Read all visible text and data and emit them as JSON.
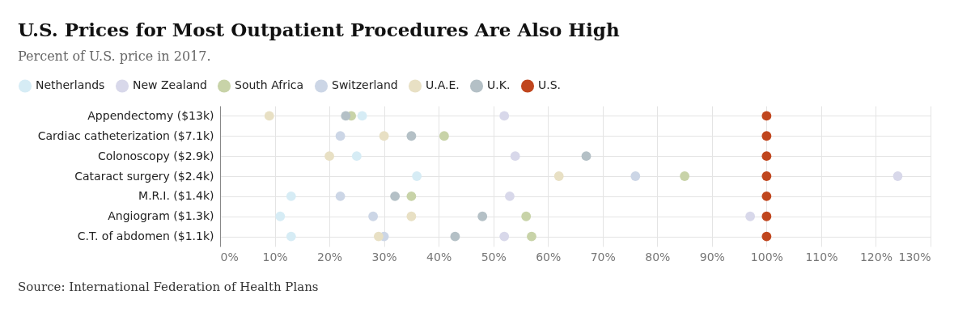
{
  "chart_data": {
    "type": "scatter",
    "orientation": "horizontal",
    "title": "U.S. Prices for Most Outpatient Procedures Are Also High",
    "subtitle": "Percent of U.S. price in 2017.",
    "categories": [
      "Appendectomy ($13k)",
      "Cardiac catheterization ($7.1k)",
      "Colonoscopy ($2.9k)",
      "Cataract surgery ($2.4k)",
      "M.R.I. ($1.4k)",
      "Angiogram ($1.3k)",
      "C.T. of abdomen ($1.1k)"
    ],
    "series": [
      {
        "name": "Netherlands",
        "color": "#d6ecf5",
        "values": [
          26,
          null,
          25,
          36,
          13,
          11,
          13
        ]
      },
      {
        "name": "New Zealand",
        "color": "#d8d8ea",
        "values": [
          52,
          null,
          54,
          124,
          53,
          97,
          52
        ]
      },
      {
        "name": "South Africa",
        "color": "#c8d3a8",
        "values": [
          24,
          41,
          null,
          85,
          35,
          56,
          57
        ]
      },
      {
        "name": "Switzerland",
        "color": "#ccd6e6",
        "values": [
          null,
          22,
          null,
          76,
          22,
          28,
          30
        ]
      },
      {
        "name": "U.A.E.",
        "color": "#e8e0c4",
        "values": [
          9,
          30,
          20,
          62,
          null,
          35,
          29
        ]
      },
      {
        "name": "U.K.",
        "color": "#b4c0c6",
        "values": [
          23,
          35,
          67,
          null,
          32,
          48,
          43
        ]
      },
      {
        "name": "U.S.",
        "color": "#c0461e",
        "values": [
          100,
          100,
          100,
          100,
          100,
          100,
          100
        ]
      }
    ],
    "xlim": [
      0,
      130
    ],
    "xticks": [
      {
        "value": 0,
        "label": "0%"
      },
      {
        "value": 10,
        "label": "10%"
      },
      {
        "value": 20,
        "label": "20%"
      },
      {
        "value": 30,
        "label": "30%"
      },
      {
        "value": 40,
        "label": "40%"
      },
      {
        "value": 50,
        "label": "50%"
      },
      {
        "value": 60,
        "label": "60%"
      },
      {
        "value": 70,
        "label": "70%"
      },
      {
        "value": 80,
        "label": "80%"
      },
      {
        "value": 90,
        "label": "90%"
      },
      {
        "value": 100,
        "label": "100%"
      },
      {
        "value": 110,
        "label": "110%"
      },
      {
        "value": 120,
        "label": "120%"
      },
      {
        "value": 130,
        "label": "130%"
      }
    ],
    "grid": true,
    "legend": "top left",
    "marker": "circle",
    "annotations": [
      "Source: International Federation of Health Plans"
    ]
  }
}
